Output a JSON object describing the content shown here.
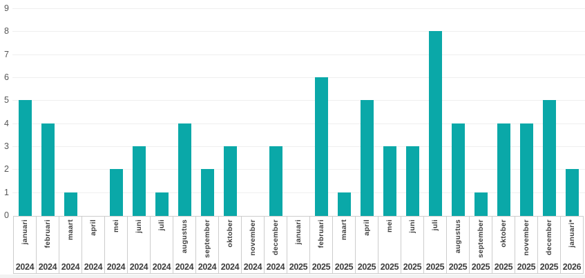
{
  "chart_data": {
    "type": "bar",
    "title": "",
    "xlabel": "",
    "ylabel": "",
    "ylim": [
      0,
      9
    ],
    "yticks": [
      0,
      1,
      2,
      3,
      4,
      5,
      6,
      7,
      8,
      9
    ],
    "grid": true,
    "legend": "none",
    "bar_color": "#0aa8a8",
    "categories": [
      {
        "month": "januari",
        "year": "2024"
      },
      {
        "month": "februari",
        "year": "2024"
      },
      {
        "month": "maart",
        "year": "2024"
      },
      {
        "month": "april",
        "year": "2024"
      },
      {
        "month": "mei",
        "year": "2024"
      },
      {
        "month": "juni",
        "year": "2024"
      },
      {
        "month": "juli",
        "year": "2024"
      },
      {
        "month": "augustus",
        "year": "2024"
      },
      {
        "month": "september",
        "year": "2024"
      },
      {
        "month": "oktober",
        "year": "2024"
      },
      {
        "month": "november",
        "year": "2024"
      },
      {
        "month": "december",
        "year": "2024"
      },
      {
        "month": "januari",
        "year": "2025"
      },
      {
        "month": "februari",
        "year": "2025"
      },
      {
        "month": "maart",
        "year": "2025"
      },
      {
        "month": "april",
        "year": "2025"
      },
      {
        "month": "mei",
        "year": "2025"
      },
      {
        "month": "juni",
        "year": "2025"
      },
      {
        "month": "juli",
        "year": "2025"
      },
      {
        "month": "augustus",
        "year": "2025"
      },
      {
        "month": "september",
        "year": "2025"
      },
      {
        "month": "oktober",
        "year": "2025"
      },
      {
        "month": "november",
        "year": "2025"
      },
      {
        "month": "december",
        "year": "2025"
      },
      {
        "month": "januari*",
        "year": "2026"
      }
    ],
    "values": [
      5,
      4,
      1,
      0,
      2,
      3,
      1,
      4,
      2,
      3,
      0,
      3,
      0,
      6,
      1,
      5,
      3,
      3,
      8,
      4,
      1,
      4,
      4,
      5,
      2
    ]
  },
  "colors": {
    "bar": "#0aa8a8",
    "gridline": "#efefef",
    "table_border": "#cccccc",
    "tick_text": "#555555",
    "label_text": "#3d3d3d",
    "background": "#ffffff",
    "bottom_strip": "#f2f2f2"
  }
}
